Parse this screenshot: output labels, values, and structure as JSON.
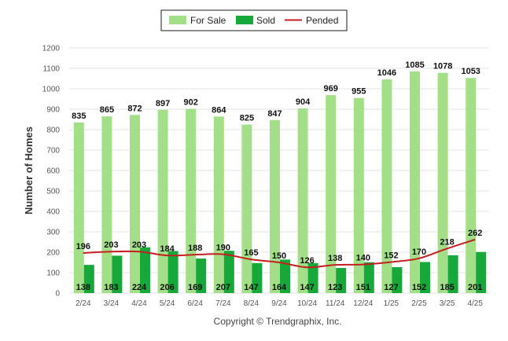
{
  "chart_data": {
    "type": "bar",
    "categories": [
      "2/24",
      "3/24",
      "4/24",
      "5/24",
      "6/24",
      "7/24",
      "8/24",
      "9/24",
      "10/24",
      "11/24",
      "12/24",
      "1/25",
      "2/25",
      "3/25",
      "4/25"
    ],
    "series": [
      {
        "name": "For Sale",
        "type": "bar",
        "color": "#a3df88",
        "values": [
          835,
          865,
          872,
          897,
          902,
          864,
          825,
          847,
          904,
          969,
          955,
          1046,
          1085,
          1078,
          1053
        ]
      },
      {
        "name": "Sold",
        "type": "bar",
        "color": "#17a83a",
        "values": [
          138,
          183,
          224,
          206,
          169,
          207,
          147,
          164,
          147,
          123,
          151,
          127,
          152,
          185,
          201
        ]
      },
      {
        "name": "Pended",
        "type": "line",
        "color": "#c41e1e",
        "values": [
          196,
          203,
          203,
          184,
          188,
          190,
          165,
          150,
          126,
          138,
          140,
          152,
          170,
          218,
          262
        ]
      }
    ],
    "ylabel": "Number of Homes",
    "ylim": [
      0,
      1200
    ],
    "yticks": [
      0,
      100,
      200,
      300,
      400,
      500,
      600,
      700,
      800,
      900,
      1000,
      1100,
      1200
    ],
    "grid": true,
    "legend_position": "top-center"
  },
  "copyright": "Copyright © Trendgraphix, Inc."
}
